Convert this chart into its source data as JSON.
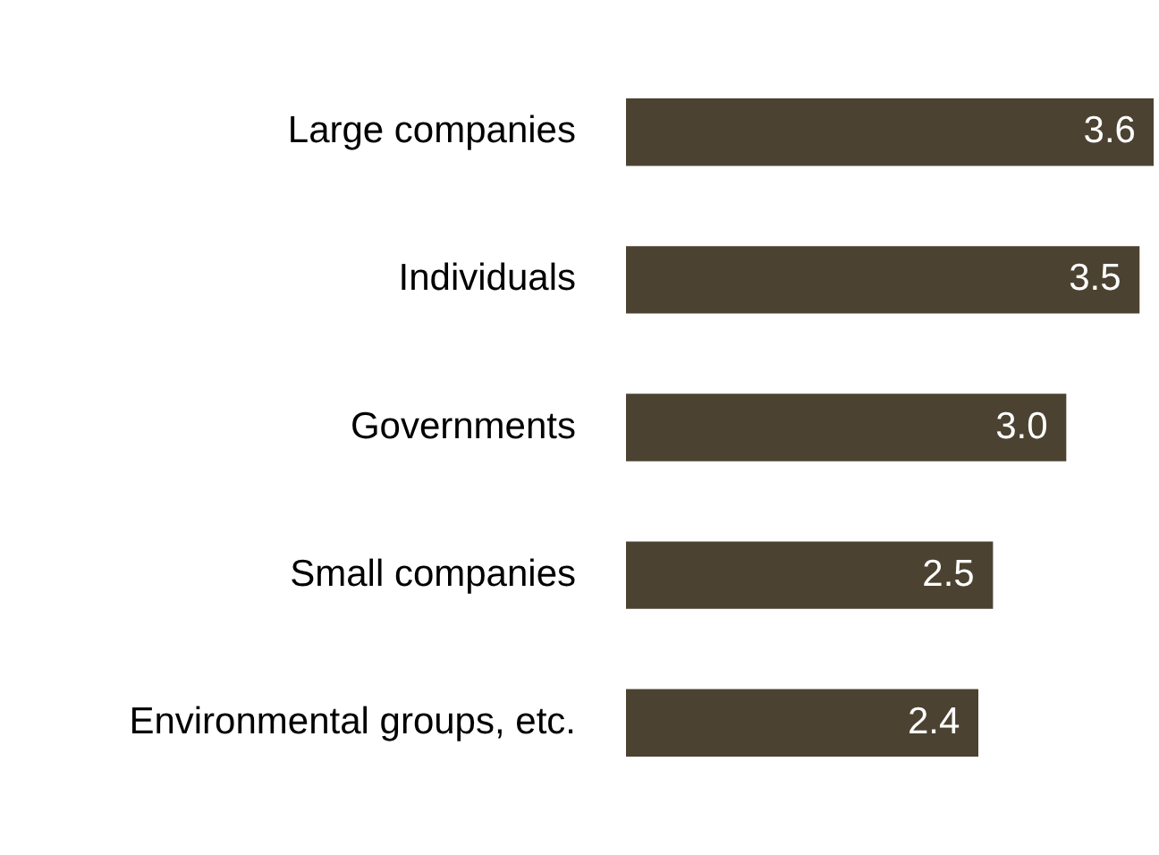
{
  "chart_data": {
    "type": "bar",
    "orientation": "horizontal",
    "categories": [
      "Large companies",
      "Individuals",
      "Governments",
      "Small companies",
      "Environmental groups, etc."
    ],
    "values": [
      3.6,
      3.5,
      3.0,
      2.5,
      2.4
    ],
    "color": "#4b4231",
    "value_labels": [
      "3.6",
      "3.5",
      "3.0",
      "2.5",
      "2.4"
    ],
    "grid": false,
    "legend": false
  }
}
